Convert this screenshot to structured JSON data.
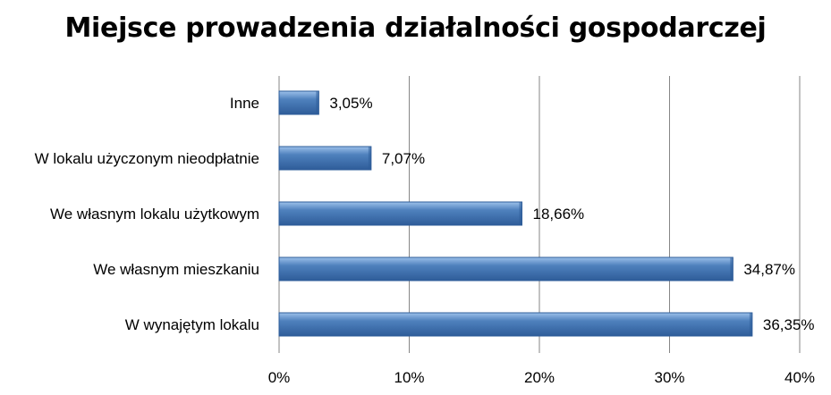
{
  "chart_data": {
    "type": "bar",
    "orientation": "horizontal",
    "title": "Miejsce prowadzenia działalności gospodarczej",
    "categories": [
      "Inne",
      "W lokalu użyczonym nieodpłatnie",
      "We własnym lokalu użytkowym",
      "We własnym mieszkaniu",
      "W wynajętym lokalu"
    ],
    "values": [
      3.05,
      7.07,
      18.66,
      34.87,
      36.35
    ],
    "data_labels": [
      "3,05%",
      "7,07%",
      "18,66%",
      "34,87%",
      "36,35%"
    ],
    "xlim": [
      0,
      40
    ],
    "x_ticks": [
      0,
      10,
      20,
      30,
      40
    ],
    "x_tick_labels": [
      "0%",
      "10%",
      "20%",
      "30%",
      "40%"
    ],
    "xlabel": "",
    "ylabel": "",
    "grid": "vertical",
    "legend": "none",
    "bar_color": "#4F81BD",
    "bar_color_dark": "#2E5C99",
    "bar_color_light": "#9CC0EA",
    "grid_color": "#868686"
  }
}
